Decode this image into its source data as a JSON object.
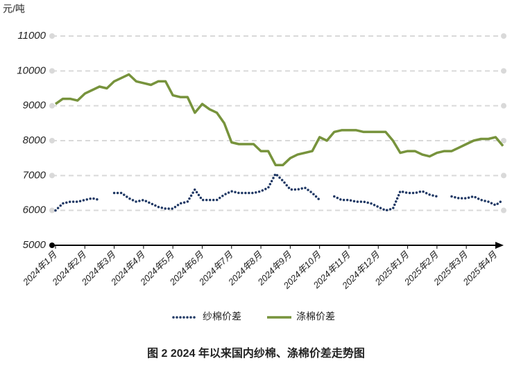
{
  "chart_data": {
    "type": "line",
    "caption": "图 2 2024 年以来国内纱棉、涤棉价差走势图",
    "y_label": "元/吨",
    "categories": [
      "2024年1月",
      null,
      null,
      null,
      "2024年2月",
      null,
      null,
      null,
      "2024年3月",
      null,
      null,
      null,
      "2024年4月",
      null,
      null,
      null,
      "2024年5月",
      null,
      null,
      null,
      "2024年6月",
      null,
      null,
      null,
      "2024年7月",
      null,
      null,
      null,
      "2024年8月",
      null,
      null,
      null,
      "2024年9月",
      null,
      null,
      null,
      "2024年10月",
      null,
      null,
      null,
      "2024年11月",
      null,
      null,
      null,
      "2024年12月",
      null,
      null,
      null,
      "2025年1月",
      null,
      null,
      null,
      "2025年2月",
      null,
      null,
      null,
      "2025年3月",
      null,
      null,
      null,
      "2025年4月",
      null
    ],
    "series": [
      {
        "name": "纱棉价差",
        "color": "#1f3864",
        "style": "dotted",
        "values": [
          6000,
          6200,
          6250,
          6250,
          6300,
          6350,
          6300,
          null,
          6500,
          6500,
          6350,
          6250,
          6300,
          6200,
          6100,
          6050,
          6050,
          6200,
          6250,
          6600,
          6300,
          6300,
          6300,
          6450,
          6550,
          6500,
          6500,
          6500,
          6550,
          6650,
          7050,
          6850,
          6600,
          6600,
          6650,
          6500,
          6300,
          null,
          6400,
          6300,
          6300,
          6250,
          6250,
          6200,
          6100,
          6000,
          6050,
          6550,
          6500,
          6500,
          6550,
          6450,
          6400,
          null,
          6400,
          6350,
          6350,
          6400,
          6300,
          6250,
          6150,
          6300
        ]
      },
      {
        "name": "涤棉价差",
        "color": "#77933c",
        "style": "solid",
        "values": [
          9050,
          9200,
          9200,
          9150,
          9350,
          9450,
          9550,
          9500,
          9700,
          9800,
          9900,
          9700,
          9650,
          9600,
          9700,
          9700,
          9300,
          9250,
          9250,
          8800,
          9050,
          8900,
          8800,
          8500,
          7950,
          7900,
          7900,
          7900,
          7700,
          7700,
          7300,
          7300,
          7500,
          7600,
          7650,
          7700,
          8100,
          8000,
          8250,
          8300,
          8300,
          8300,
          8250,
          8250,
          8250,
          8250,
          8000,
          7650,
          7700,
          7700,
          7600,
          7550,
          7650,
          7700,
          7700,
          7800,
          7900,
          8000,
          8050,
          8050,
          8100,
          7850
        ]
      }
    ],
    "ylim": [
      5000,
      11000
    ],
    "yticks": [
      5000,
      6000,
      7000,
      8000,
      9000,
      10000,
      11000
    ],
    "grid": true,
    "legend": "bottom"
  }
}
